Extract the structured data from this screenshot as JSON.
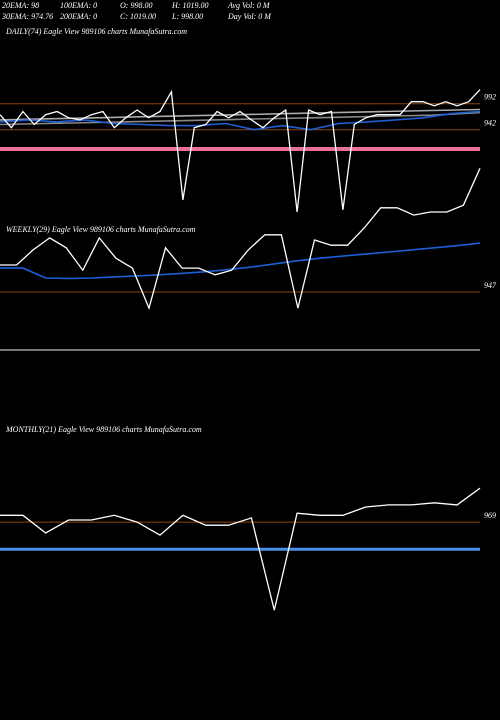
{
  "header": {
    "row1": [
      "20EMA: 98",
      "100EMA: 0",
      "O: 998.00",
      "H: 1019.00",
      "Avg Vol: 0  M"
    ],
    "row2": [
      "30EMA: 974.76",
      "200EMA: 0",
      "C: 1019.00",
      "L: 998.00",
      "Day Vol: 0  M"
    ]
  },
  "chart_data": [
    {
      "type": "line",
      "title": "DAILY(74) Eagle  View  989106  charts MunafaSutra.com",
      "ylim": [
        778,
        1105
      ],
      "yticks": [
        942,
        992
      ],
      "grid_color": "#8b4513",
      "series": [
        {
          "color": "#ffffff",
          "values": [
            971,
            946,
            977,
            952,
            971,
            977,
            965,
            961,
            971,
            977,
            946,
            965,
            980,
            965,
            977,
            1015,
            807,
            946,
            952,
            977,
            965,
            977,
            961,
            946,
            965,
            980,
            784,
            980,
            971,
            977,
            788,
            952,
            965,
            971,
            971,
            971,
            996,
            996,
            988,
            996,
            988,
            996,
            1019
          ]
        },
        {
          "color": "#1e5fd8",
          "values": [
            957,
            961,
            957,
            961,
            954,
            952,
            950,
            950,
            954,
            942,
            950,
            942,
            954,
            957,
            961,
            965,
            973,
            977
          ]
        },
        {
          "color": "#aaaaaa",
          "values": [
            961,
            963,
            965,
            967,
            969,
            971,
            973,
            975,
            977,
            979,
            981
          ]
        },
        {
          "color": "#888888",
          "values": [
            952,
            954,
            956,
            958,
            960,
            962,
            964,
            966,
            968,
            970,
            975
          ]
        }
      ]
    },
    {
      "type": "line",
      "title": "WEEKLY(29) Eagle  View  989106  charts MunafaSutra.com",
      "ylim": [
        845,
        1201
      ],
      "yticks": [
        947
      ],
      "grid_color": "#8b4513",
      "series": [
        {
          "color": "#ffffff",
          "values": [
            999,
            999,
            1028,
            1051,
            1032,
            989,
            1051,
            1012,
            993,
            916,
            1032,
            993,
            993,
            980,
            989,
            1028,
            1057,
            1057,
            916,
            1047,
            1037,
            1037,
            1070,
            1109,
            1109,
            1095,
            1101,
            1101,
            1114,
            1185
          ]
        },
        {
          "color": "#1e5fd8",
          "values": [
            993,
            993,
            974,
            973,
            974,
            976,
            978,
            980,
            983,
            986,
            990,
            995,
            1001,
            1007,
            1012,
            1016,
            1020,
            1024,
            1028,
            1032,
            1036,
            1041
          ]
        }
      ]
    },
    {
      "type": "line",
      "title": "MONTHLY(21) Eagle  View  989106  charts MunafaSutra.com",
      "ylim": [
        781,
        1069
      ],
      "yticks": [
        969
      ],
      "grid_color": "#8b4513",
      "series": [
        {
          "color": "#ffffff",
          "values": [
            982,
            982,
            948,
            973,
            973,
            982,
            969,
            944,
            982,
            963,
            963,
            977,
            800,
            986,
            982,
            982,
            998,
            1002,
            1002,
            1006,
            1002,
            1034
          ]
        },
        {
          "color": "#4a8fe8",
          "values": [
            917,
            917
          ]
        }
      ]
    }
  ]
}
